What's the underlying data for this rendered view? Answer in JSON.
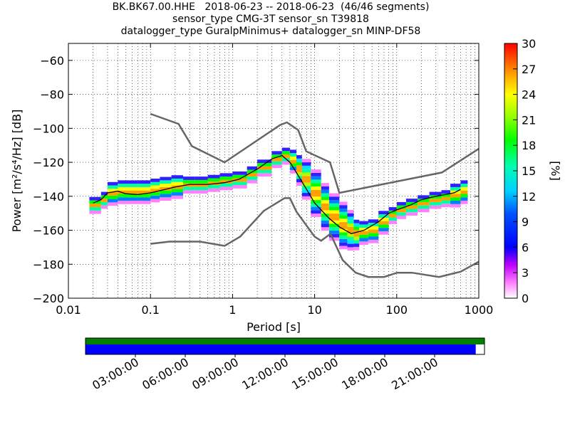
{
  "chart_data": {
    "type": "heatmap",
    "title_lines": [
      "BK.BK67.00.HHE   2018-06-23 -- 2018-06-23  (46/46 segments)",
      "sensor_type CMG-3T sensor_sn T39818",
      "datalogger_type GuralpMinimus+ datalogger_sn MINP-DF58"
    ],
    "xlabel": "Period [s]",
    "ylabel": "Power [m²/s⁴/Hz] [dB]",
    "xscale": "log",
    "xlim": [
      0.01,
      1000
    ],
    "ylim": [
      -200,
      -50
    ],
    "xticks": [
      {
        "v": 0.01,
        "label": "0.01"
      },
      {
        "v": 0.1,
        "label": "0.1"
      },
      {
        "v": 1,
        "label": "1"
      },
      {
        "v": 10,
        "label": "10"
      },
      {
        "v": 100,
        "label": "100"
      },
      {
        "v": 1000,
        "label": "1000"
      }
    ],
    "yticks": [
      {
        "v": -60,
        "label": "−60"
      },
      {
        "v": -80,
        "label": "−80"
      },
      {
        "v": -100,
        "label": "−100"
      },
      {
        "v": -120,
        "label": "−120"
      },
      {
        "v": -140,
        "label": "−140"
      },
      {
        "v": -160,
        "label": "−160"
      },
      {
        "v": -180,
        "label": "−180"
      },
      {
        "v": -200,
        "label": "−200"
      }
    ],
    "grid": true,
    "colorbar": {
      "label": "[%]",
      "range": [
        0,
        30
      ],
      "ticks": [
        "0",
        "3",
        "6",
        "9",
        "12",
        "15",
        "18",
        "21",
        "24",
        "27",
        "30"
      ]
    },
    "high_noise_model": [
      [
        0.1,
        -91.5
      ],
      [
        0.22,
        -97.4
      ],
      [
        0.32,
        -110.5
      ],
      [
        0.8,
        -120
      ],
      [
        3.8,
        -98
      ],
      [
        4.6,
        -96.5
      ],
      [
        6.3,
        -101
      ],
      [
        7.9,
        -113.5
      ],
      [
        15.4,
        -120
      ],
      [
        20,
        -138
      ],
      [
        354.8,
        -126
      ],
      [
        1000,
        -112
      ]
    ],
    "low_noise_model": [
      [
        0.1,
        -168
      ],
      [
        0.17,
        -166.7
      ],
      [
        0.4,
        -166.7
      ],
      [
        0.8,
        -169.2
      ],
      [
        1.24,
        -163.7
      ],
      [
        2.4,
        -148.6
      ],
      [
        4.3,
        -141.1
      ],
      [
        5,
        -141.1
      ],
      [
        6,
        -149
      ],
      [
        10,
        -163.8
      ],
      [
        12,
        -166.2
      ],
      [
        15.6,
        -162.1
      ],
      [
        21.9,
        -177.5
      ],
      [
        31.6,
        -185
      ],
      [
        45,
        -187.5
      ],
      [
        70,
        -187.5
      ],
      [
        101,
        -185
      ],
      [
        154,
        -185
      ],
      [
        328,
        -187.5
      ],
      [
        600,
        -184.4
      ],
      [
        1000,
        -178.5
      ]
    ],
    "mode_curve": [
      [
        0.02,
        -144
      ],
      [
        0.025,
        -142
      ],
      [
        0.03,
        -138
      ],
      [
        0.04,
        -137
      ],
      [
        0.05,
        -138.5
      ],
      [
        0.07,
        -139
      ],
      [
        0.1,
        -138
      ],
      [
        0.15,
        -136
      ],
      [
        0.2,
        -134.5
      ],
      [
        0.3,
        -133
      ],
      [
        0.5,
        -133
      ],
      [
        0.8,
        -132
      ],
      [
        1.2,
        -130
      ],
      [
        2,
        -124
      ],
      [
        3,
        -118
      ],
      [
        4,
        -116
      ],
      [
        5,
        -120
      ],
      [
        6,
        -126
      ],
      [
        8,
        -136
      ],
      [
        10,
        -144
      ],
      [
        15,
        -153
      ],
      [
        20,
        -158
      ],
      [
        28,
        -162
      ],
      [
        40,
        -160
      ],
      [
        60,
        -155
      ],
      [
        80,
        -150
      ],
      [
        100,
        -148
      ],
      [
        150,
        -145
      ],
      [
        200,
        -142
      ],
      [
        300,
        -140
      ],
      [
        500,
        -138
      ],
      [
        600,
        -136
      ]
    ],
    "psd_band": [
      [
        0.018,
        -145,
        2
      ],
      [
        0.025,
        -142,
        2
      ],
      [
        0.03,
        -138,
        3
      ],
      [
        0.04,
        -137,
        3
      ],
      [
        0.05,
        -137,
        3
      ],
      [
        0.07,
        -137,
        3
      ],
      [
        0.1,
        -136,
        3
      ],
      [
        0.13,
        -135,
        3
      ],
      [
        0.18,
        -134,
        3
      ],
      [
        0.25,
        -133,
        2
      ],
      [
        0.35,
        -133,
        2
      ],
      [
        0.5,
        -132,
        2
      ],
      [
        0.7,
        -131,
        2
      ],
      [
        1,
        -130,
        2
      ],
      [
        1.5,
        -127,
        2
      ],
      [
        2,
        -123,
        2
      ],
      [
        3,
        -118,
        2
      ],
      [
        4,
        -116,
        2
      ],
      [
        5,
        -119,
        3
      ],
      [
        6,
        -124,
        4
      ],
      [
        7,
        -130,
        5
      ],
      [
        9,
        -138,
        6
      ],
      [
        12,
        -146,
        6
      ],
      [
        15,
        -152,
        6
      ],
      [
        20,
        -157,
        6
      ],
      [
        25,
        -160,
        5
      ],
      [
        30,
        -162,
        4
      ],
      [
        35,
        -161,
        3
      ],
      [
        45,
        -160,
        3
      ],
      [
        60,
        -155,
        3
      ],
      [
        80,
        -151,
        2
      ],
      [
        100,
        -148,
        2
      ],
      [
        130,
        -146,
        2
      ],
      [
        180,
        -144,
        2
      ],
      [
        250,
        -142,
        2
      ],
      [
        350,
        -141,
        2
      ],
      [
        450,
        -139,
        3
      ],
      [
        600,
        -137,
        3
      ]
    ]
  },
  "timeline": {
    "labels": [
      "03:00:00",
      "06:00:00",
      "09:00:00",
      "12:00:00",
      "15:00:00",
      "18:00:00",
      "21:00:00"
    ],
    "top_color": "#007f00",
    "bottom_color": "#0000ff",
    "coverage_fraction": 0.978
  }
}
